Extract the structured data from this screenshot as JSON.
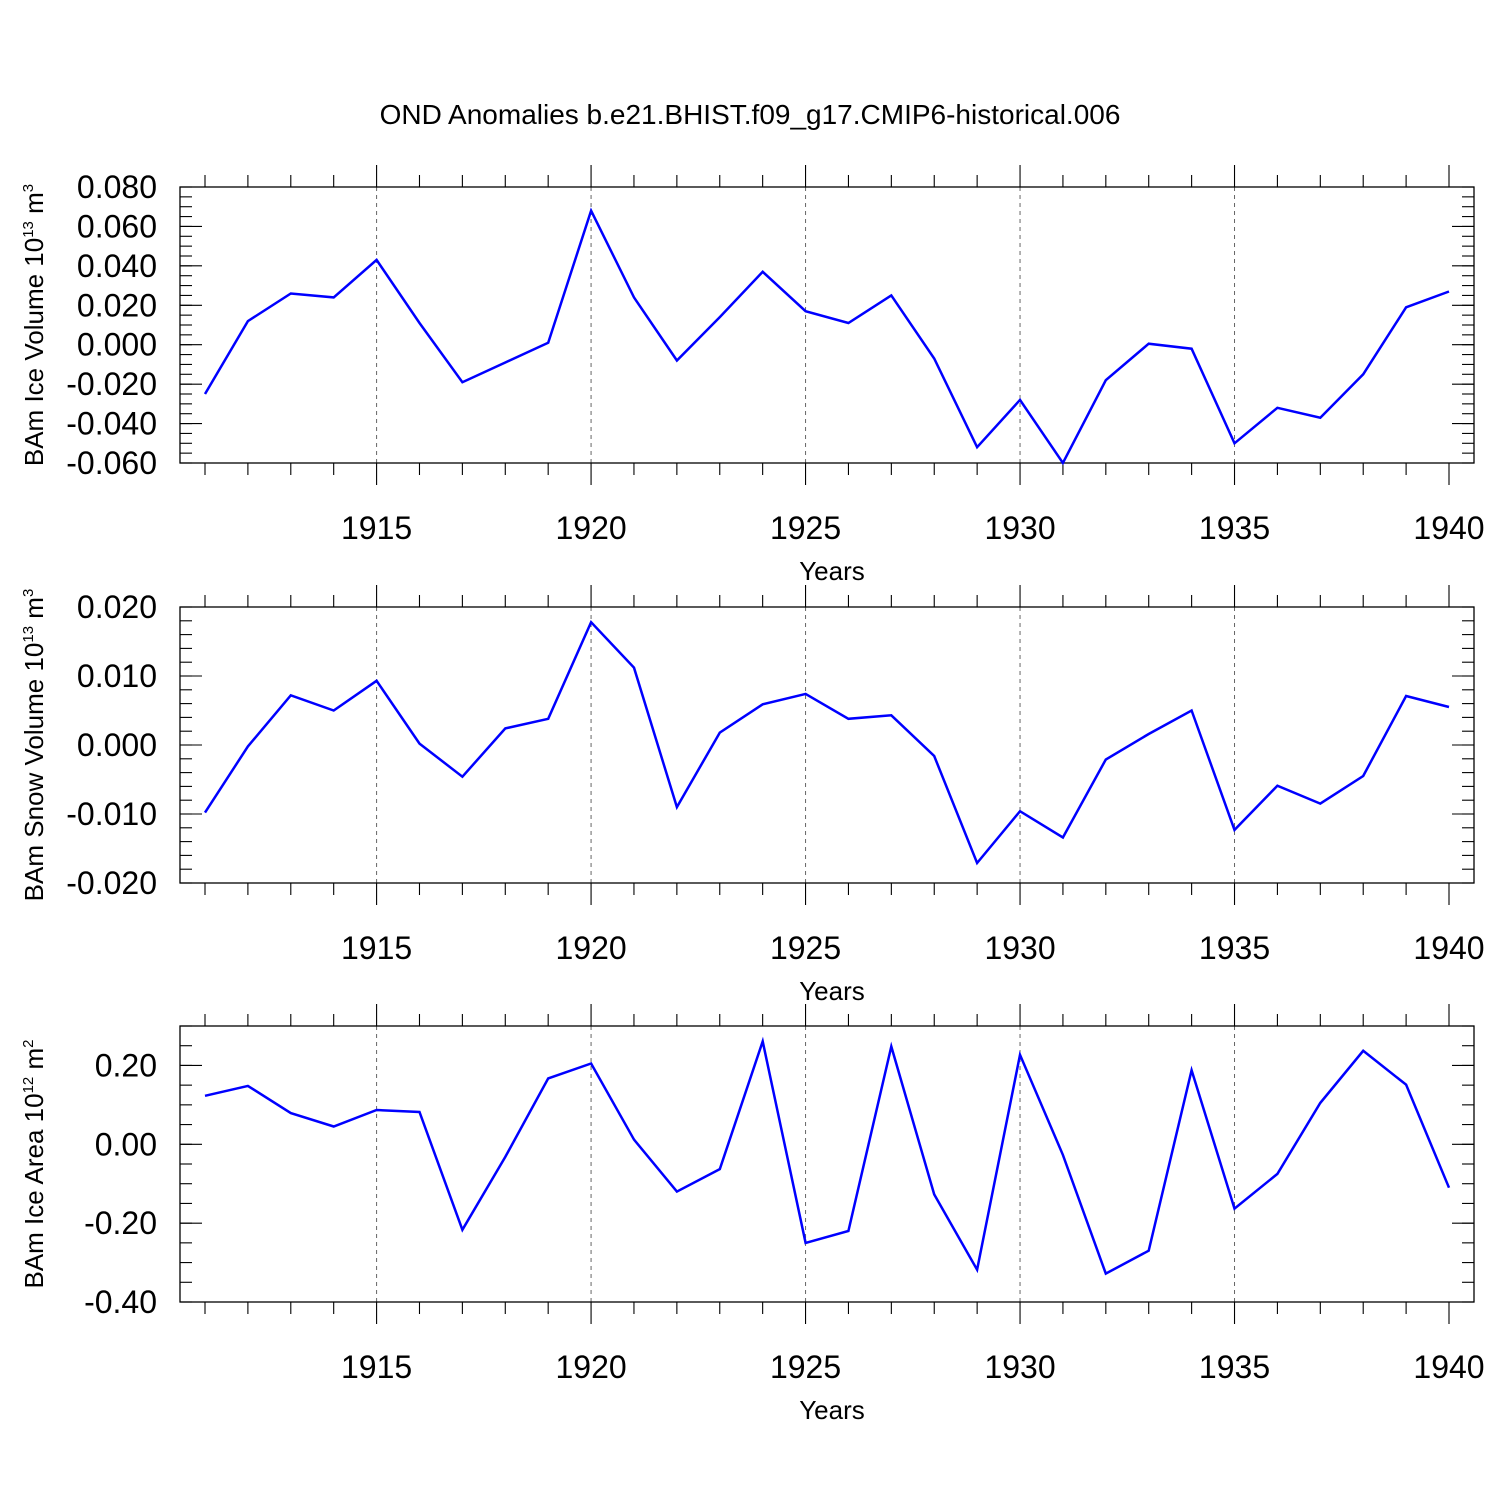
{
  "title": "OND Anomalies b.e21.BHIST.f09_g17.CMIP6-historical.006",
  "chart_data": [
    {
      "type": "line",
      "xlabel": "Years",
      "ylabel": {
        "text": "BAm Ice Volume 10",
        "exponent": "13",
        "unit": "m",
        "unit_exponent": "3"
      },
      "xlim": [
        1911,
        1940
      ],
      "ylim": [
        -0.06,
        0.08
      ],
      "x_ticks": [
        1915,
        1920,
        1925,
        1930,
        1935,
        1940
      ],
      "y_ticks": [
        {
          "value": -0.06,
          "label": "-0.060"
        },
        {
          "value": -0.04,
          "label": "-0.040"
        },
        {
          "value": -0.02,
          "label": "-0.020"
        },
        {
          "value": 0.0,
          "label": "0.000"
        },
        {
          "value": 0.02,
          "label": "0.020"
        },
        {
          "value": 0.04,
          "label": "0.040"
        },
        {
          "value": 0.06,
          "label": "0.060"
        },
        {
          "value": 0.08,
          "label": "0.080"
        }
      ],
      "y_minor_step": 0.005,
      "grid": "vertical-dashed",
      "series": [
        {
          "name": "BAm Ice Volume",
          "color": "#0000ff",
          "x": [
            1911,
            1912,
            1913,
            1914,
            1915,
            1916,
            1917,
            1918,
            1919,
            1920,
            1921,
            1922,
            1923,
            1924,
            1925,
            1926,
            1927,
            1928,
            1929,
            1930,
            1931,
            1932,
            1933,
            1934,
            1935,
            1936,
            1937,
            1938,
            1939,
            1940
          ],
          "y": [
            -0.025,
            0.012,
            0.026,
            0.024,
            0.043,
            0.011,
            -0.019,
            -0.009,
            0.001,
            0.068,
            0.024,
            -0.008,
            0.014,
            0.037,
            0.017,
            0.011,
            0.025,
            -0.007,
            -0.052,
            -0.028,
            -0.06,
            -0.018,
            0.0005,
            -0.002,
            -0.05,
            -0.032,
            -0.037,
            -0.015,
            0.019,
            0.027
          ]
        }
      ]
    },
    {
      "type": "line",
      "xlabel": "Years",
      "ylabel": {
        "text": "BAm Snow Volume 10",
        "exponent": "13",
        "unit": "m",
        "unit_exponent": "3"
      },
      "xlim": [
        1911,
        1940
      ],
      "ylim": [
        -0.02,
        0.02
      ],
      "x_ticks": [
        1915,
        1920,
        1925,
        1930,
        1935,
        1940
      ],
      "y_ticks": [
        {
          "value": -0.02,
          "label": "-0.020"
        },
        {
          "value": -0.01,
          "label": "-0.010"
        },
        {
          "value": 0.0,
          "label": "0.000"
        },
        {
          "value": 0.01,
          "label": "0.010"
        },
        {
          "value": 0.02,
          "label": "0.020"
        }
      ],
      "y_minor_step": 0.002,
      "grid": "vertical-dashed",
      "series": [
        {
          "name": "BAm Snow Volume",
          "color": "#0000ff",
          "x": [
            1911,
            1912,
            1913,
            1914,
            1915,
            1916,
            1917,
            1918,
            1919,
            1920,
            1921,
            1922,
            1923,
            1924,
            1925,
            1926,
            1927,
            1928,
            1929,
            1930,
            1931,
            1932,
            1933,
            1934,
            1935,
            1936,
            1937,
            1938,
            1939,
            1940
          ],
          "y": [
            -0.0098,
            -0.0002,
            0.0072,
            0.005,
            0.0093,
            0.0002,
            -0.0046,
            0.0024,
            0.0038,
            0.0178,
            0.0112,
            -0.009,
            0.0018,
            0.0059,
            0.0074,
            0.0038,
            0.0043,
            -0.0016,
            -0.0171,
            -0.0096,
            -0.0134,
            -0.0021,
            0.0016,
            0.005,
            -0.0123,
            -0.0059,
            -0.0085,
            -0.0045,
            0.0071,
            0.0055
          ]
        }
      ]
    },
    {
      "type": "line",
      "xlabel": "Years",
      "ylabel": {
        "text": "BAm Ice Area 10",
        "exponent": "12",
        "unit": "m",
        "unit_exponent": "2"
      },
      "xlim": [
        1911,
        1940
      ],
      "ylim": [
        -0.4,
        0.3
      ],
      "x_ticks": [
        1915,
        1920,
        1925,
        1930,
        1935,
        1940
      ],
      "y_ticks": [
        {
          "value": -0.4,
          "label": "-0.40"
        },
        {
          "value": -0.2,
          "label": "-0.20"
        },
        {
          "value": 0.0,
          "label": "0.00"
        },
        {
          "value": 0.2,
          "label": "0.20"
        }
      ],
      "y_minor_step": 0.05,
      "grid": "vertical-dashed",
      "series": [
        {
          "name": "BAm Ice Area",
          "color": "#0000ff",
          "x": [
            1911,
            1912,
            1913,
            1914,
            1915,
            1916,
            1917,
            1918,
            1919,
            1920,
            1921,
            1922,
            1923,
            1924,
            1925,
            1926,
            1927,
            1928,
            1929,
            1930,
            1931,
            1932,
            1933,
            1934,
            1935,
            1936,
            1937,
            1938,
            1939,
            1940
          ],
          "y": [
            0.123,
            0.148,
            0.079,
            0.045,
            0.087,
            0.082,
            -0.217,
            -0.032,
            0.167,
            0.205,
            0.012,
            -0.12,
            -0.063,
            0.261,
            -0.25,
            -0.22,
            0.248,
            -0.127,
            -0.318,
            0.227,
            -0.027,
            -0.328,
            -0.27,
            0.188,
            -0.163,
            -0.075,
            0.105,
            0.237,
            0.151,
            -0.11
          ]
        }
      ]
    }
  ]
}
